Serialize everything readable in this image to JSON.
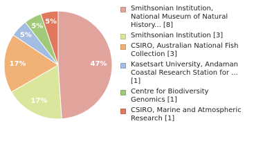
{
  "chart_data": {
    "type": "pie",
    "categories": [
      "Smithsonian Institution, National Museum of Natural History... [8]",
      "Smithsonian Institution [3]",
      "CSIRO, Australian National Fish Collection [3]",
      "Kasetsart University, Andaman Coastal Research Station for ... [1]",
      "Centre for Biodiversity Genomics [1]",
      "CSIRO, Marine and Atmospheric Research [1]"
    ],
    "values": [
      47,
      17,
      17,
      5,
      5,
      5
    ],
    "value_labels": [
      "47%",
      "17%",
      "17%",
      "5%",
      "5%",
      "5%"
    ],
    "colors": [
      "#e0a49c",
      "#dce59c",
      "#f2b174",
      "#a2bce2",
      "#a2c97a",
      "#e0785e"
    ]
  }
}
